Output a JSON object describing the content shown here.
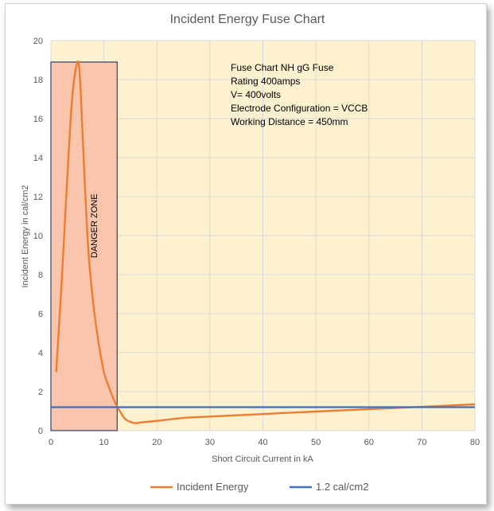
{
  "chart_data": {
    "type": "line",
    "title": "Incident Energy Fuse Chart",
    "xlabel": "Short Circuit Current in kA",
    "ylabel": "Incident Energy in cal/cm2",
    "xlim": [
      0,
      80
    ],
    "ylim": [
      0,
      20
    ],
    "x_ticks": [
      0,
      10,
      20,
      30,
      40,
      50,
      60,
      70,
      80
    ],
    "y_ticks": [
      0,
      2,
      4,
      6,
      8,
      10,
      12,
      14,
      16,
      18,
      20
    ],
    "grid": true,
    "legend_position": "bottom",
    "background_color": "#fdf1cf",
    "series": [
      {
        "name": "Incident Energy",
        "color": "#ed7d31",
        "points": [
          [
            1,
            3.0
          ],
          [
            2,
            7.5
          ],
          [
            3,
            12.5
          ],
          [
            4,
            17.0
          ],
          [
            5,
            18.9
          ],
          [
            5.5,
            18.0
          ],
          [
            6,
            15.0
          ],
          [
            7,
            9.5
          ],
          [
            8,
            6.5
          ],
          [
            9,
            4.5
          ],
          [
            10,
            3.0
          ],
          [
            11,
            2.2
          ],
          [
            12,
            1.5
          ],
          [
            13,
            1.0
          ],
          [
            14,
            0.6
          ],
          [
            15,
            0.45
          ],
          [
            16,
            0.38
          ],
          [
            17,
            0.42
          ],
          [
            20,
            0.5
          ],
          [
            25,
            0.65
          ],
          [
            30,
            0.72
          ],
          [
            40,
            0.85
          ],
          [
            50,
            0.98
          ],
          [
            60,
            1.1
          ],
          [
            70,
            1.22
          ],
          [
            80,
            1.35
          ]
        ]
      },
      {
        "name": "1.2 cal/cm2",
        "color": "#4472c4",
        "points": [
          [
            0,
            1.2
          ],
          [
            80,
            1.2
          ]
        ]
      }
    ],
    "danger_zone": {
      "label": "DANGER ZONE",
      "x_range": [
        0,
        12.5
      ],
      "y_range": [
        0,
        18.9
      ],
      "fill": "#f9c6ad",
      "border": "#2f3e6b"
    },
    "annotations": [
      "Fuse Chart NH gG Fuse",
      "Rating 400amps",
      "V= 400volts",
      "Electrode Configuration = VCCB",
      "Working Distance = 450mm"
    ],
    "legend": [
      "Incident Energy",
      "1.2 cal/cm2"
    ]
  }
}
